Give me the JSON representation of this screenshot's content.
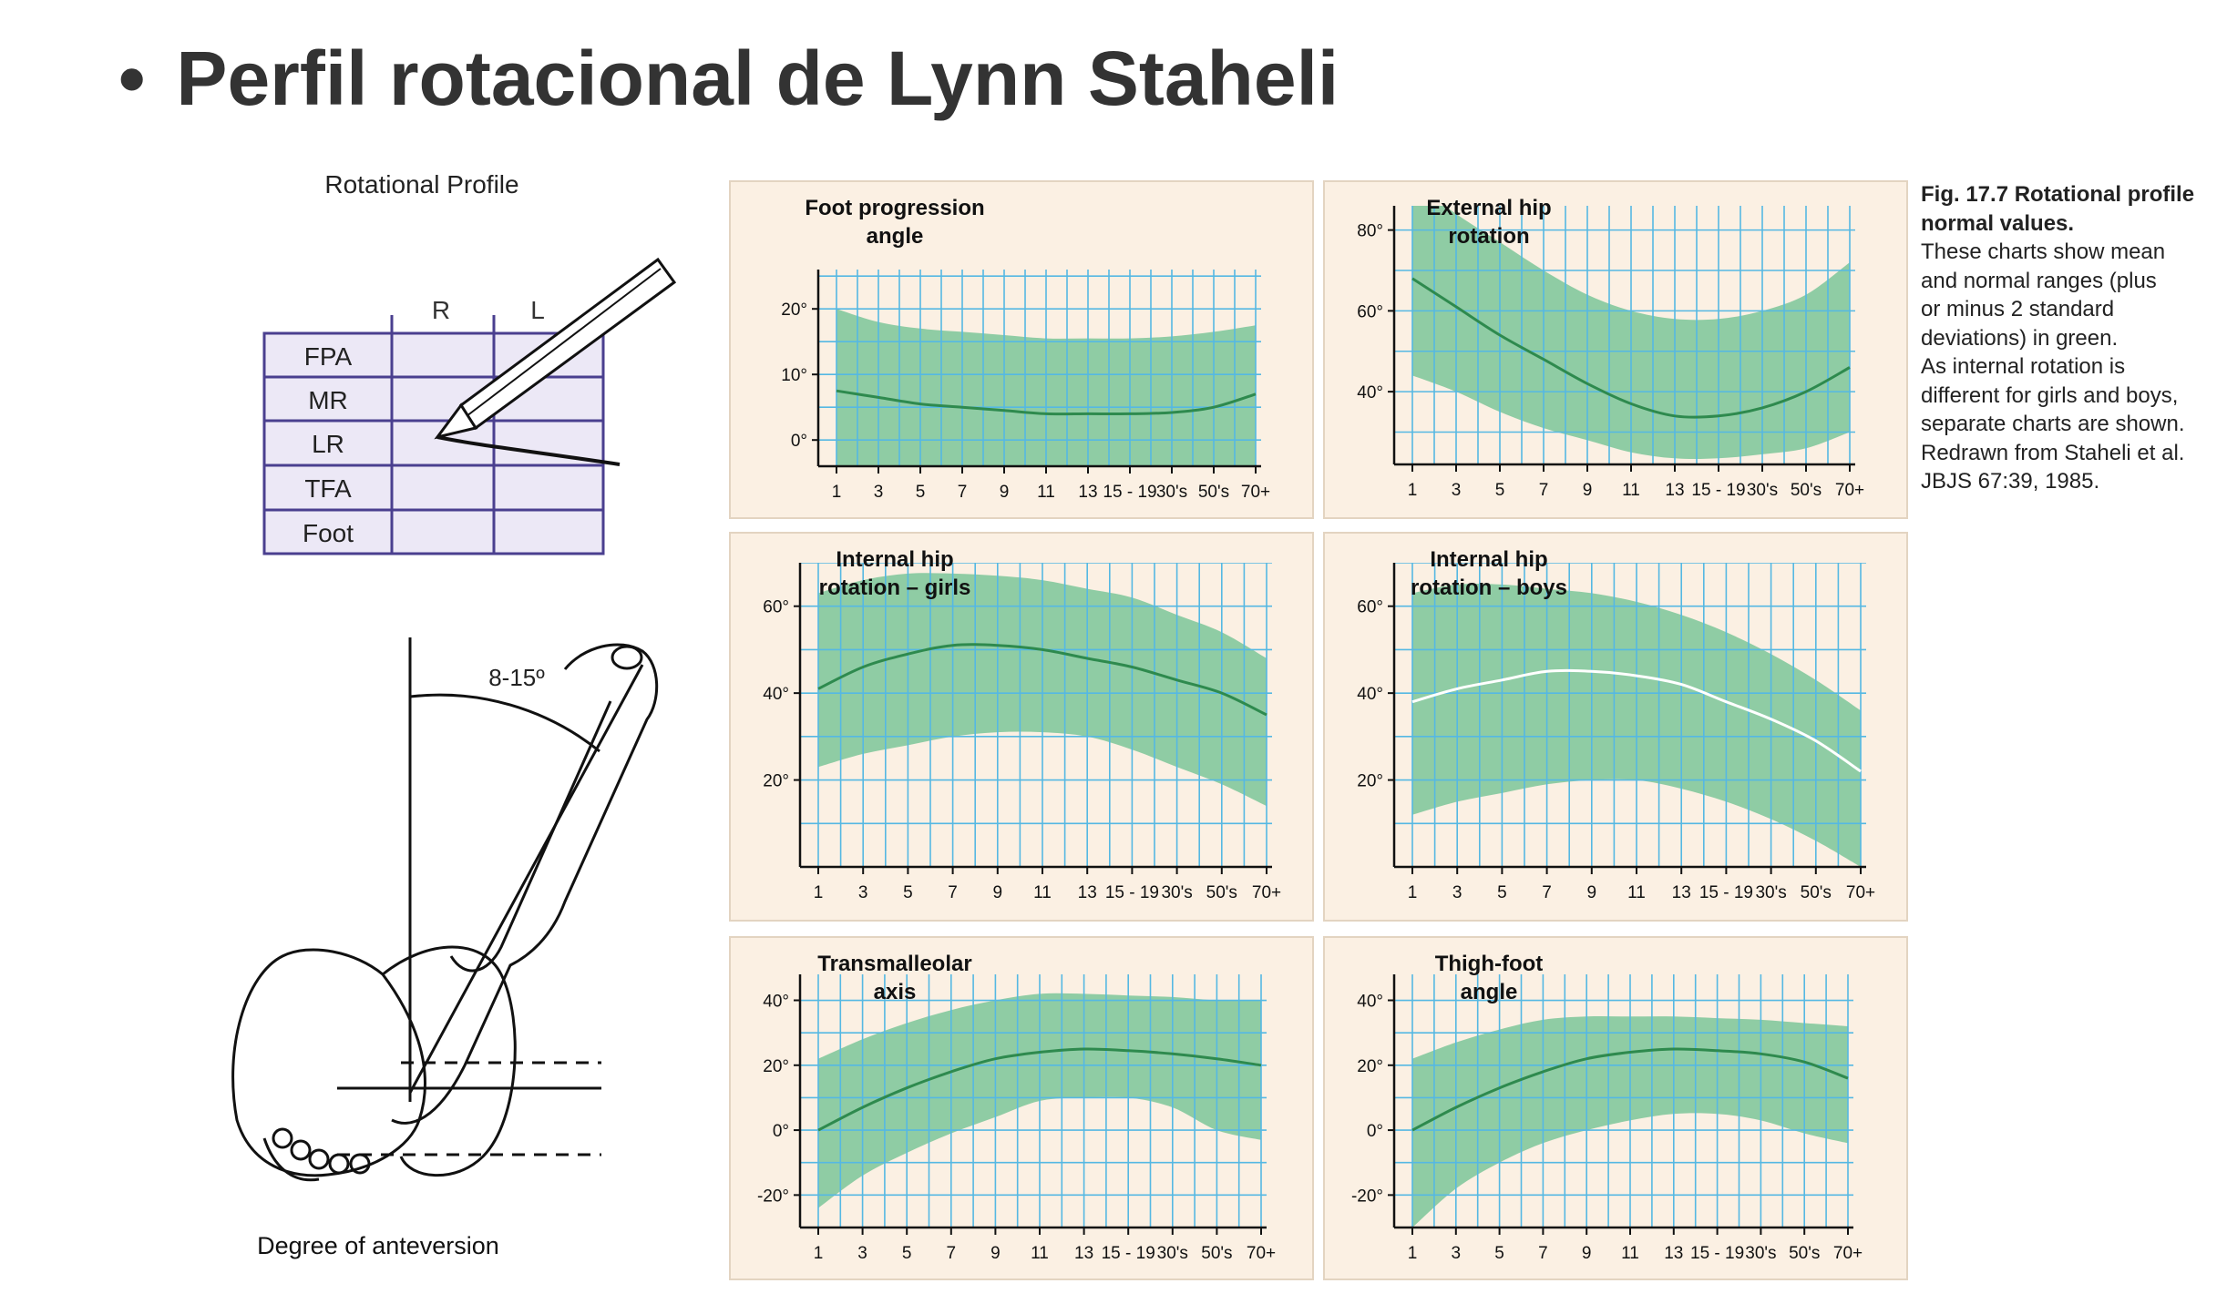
{
  "slide": {
    "bullet": "•",
    "title": "Perfil rotacional de Lynn Staheli"
  },
  "profile_table": {
    "title": "Rotational Profile",
    "col_r": "R",
    "col_l": "L",
    "rows": [
      "FPA",
      "MR",
      "LR",
      "TFA",
      "Foot"
    ]
  },
  "anteversion": {
    "angle_label": "8-15º",
    "caption": "Degree of anteversion"
  },
  "caption": {
    "bold": "Fig. 17.7 Rotational profile normal values.",
    "lines": [
      "These charts show mean",
      "and normal ranges (plus",
      "or minus 2 standard",
      "deviations) in green.",
      "As internal rotation is",
      "different for girls and boys,",
      "separate charts are shown.",
      "Redrawn from Staheli et al.",
      "JBJS 67:39, 1985."
    ]
  },
  "colors": {
    "panel_bg": "#fbf0e3",
    "band": "#8fcca4",
    "mean_line": "#2e8a4e",
    "grid": "#55b8e3",
    "axis": "#111111",
    "mean_line_boys": "#ffffff"
  },
  "chart_data": [
    {
      "id": "foot-progression-angle",
      "type": "area",
      "title": [
        "Foot progression",
        "angle"
      ],
      "x_ticks": [
        "1",
        "3",
        "5",
        "7",
        "9",
        "11",
        "13",
        "15 - 19",
        "30's",
        "50's",
        "70+"
      ],
      "y_ticks": [
        {
          "v": 0,
          "label": "0°"
        },
        {
          "v": 10,
          "label": "10°"
        },
        {
          "v": 20,
          "label": "20°"
        }
      ],
      "ylim": [
        -4,
        26
      ],
      "mean": [
        7.5,
        6.5,
        5.5,
        5,
        4.5,
        4,
        4,
        4,
        4.2,
        5,
        7
      ],
      "upper": [
        20,
        18,
        17,
        16.5,
        16,
        15.5,
        15.5,
        15.5,
        15.8,
        16.5,
        17.5
      ],
      "lower": [
        -4,
        -4,
        -4,
        -4,
        -4,
        -4,
        -4,
        -4,
        -4,
        -4,
        -4
      ],
      "mean_color": "#2e8a4e"
    },
    {
      "id": "external-hip-rotation",
      "type": "area",
      "title": [
        "External hip",
        "rotation"
      ],
      "x_ticks": [
        "1",
        "3",
        "5",
        "7",
        "9",
        "11",
        "13",
        "15 - 19",
        "30's",
        "50's",
        "70+"
      ],
      "y_ticks": [
        {
          "v": 40,
          "label": "40°"
        },
        {
          "v": 60,
          "label": "60°"
        },
        {
          "v": 80,
          "label": "80°"
        }
      ],
      "ylim": [
        22,
        86
      ],
      "mean": [
        68,
        61,
        54,
        48,
        42,
        37,
        34,
        34,
        36,
        40,
        46
      ],
      "upper": [
        92,
        84,
        77,
        70,
        64,
        60,
        58,
        58,
        60,
        64,
        72
      ],
      "lower": [
        44,
        40,
        35,
        31,
        28,
        25,
        23.5,
        23.5,
        24.5,
        26,
        30
      ],
      "mean_color": "#2e8a4e"
    },
    {
      "id": "internal-hip-rotation-girls",
      "type": "area",
      "title": [
        "Internal hip",
        "rotation – girls"
      ],
      "x_ticks": [
        "1",
        "3",
        "5",
        "7",
        "9",
        "11",
        "13",
        "15 - 19",
        "30's",
        "50's",
        "70+"
      ],
      "y_ticks": [
        {
          "v": 20,
          "label": "20°"
        },
        {
          "v": 40,
          "label": "40°"
        },
        {
          "v": 60,
          "label": "60°"
        }
      ],
      "ylim": [
        0,
        70
      ],
      "mean": [
        41,
        46,
        49,
        51,
        51,
        50,
        48,
        46,
        43,
        40,
        35
      ],
      "upper": [
        63,
        66,
        67.5,
        67.5,
        67,
        66,
        64,
        62,
        58,
        54,
        48
      ],
      "lower": [
        23,
        26,
        28,
        30,
        31,
        31,
        30,
        27,
        23,
        19,
        14
      ],
      "mean_color": "#2e8a4e"
    },
    {
      "id": "internal-hip-rotation-boys",
      "type": "area",
      "title": [
        "Internal hip",
        "rotation – boys"
      ],
      "x_ticks": [
        "1",
        "3",
        "5",
        "7",
        "9",
        "11",
        "13",
        "15 - 19",
        "30's",
        "50's",
        "70+"
      ],
      "y_ticks": [
        {
          "v": 20,
          "label": "20°"
        },
        {
          "v": 40,
          "label": "40°"
        },
        {
          "v": 60,
          "label": "60°"
        }
      ],
      "ylim": [
        0,
        70
      ],
      "mean": [
        38,
        41,
        43,
        45,
        45,
        44,
        42,
        38,
        34,
        29,
        22
      ],
      "upper": [
        63,
        65,
        65,
        64,
        63,
        61,
        58,
        54,
        49,
        43,
        36
      ],
      "lower": [
        12,
        15,
        17,
        19,
        20,
        20,
        18,
        15,
        11,
        6,
        0
      ],
      "mean_color": "#ffffff"
    },
    {
      "id": "transmalleolar-axis",
      "type": "area",
      "title": [
        "Transmalleolar",
        "axis"
      ],
      "x_ticks": [
        "1",
        "3",
        "5",
        "7",
        "9",
        "11",
        "13",
        "15 - 19",
        "30's",
        "50's",
        "70+"
      ],
      "y_ticks": [
        {
          "v": -20,
          "label": "-20°"
        },
        {
          "v": 0,
          "label": "0°"
        },
        {
          "v": 20,
          "label": "20°"
        },
        {
          "v": 40,
          "label": "40°"
        }
      ],
      "ylim": [
        -30,
        48
      ],
      "mean": [
        0,
        7,
        13,
        18,
        22,
        24,
        25,
        24.5,
        23.5,
        22,
        20
      ],
      "upper": [
        22,
        28,
        33,
        37,
        40,
        42,
        42,
        41.5,
        41,
        40,
        40
      ],
      "lower": [
        -24,
        -14,
        -7,
        -1,
        4,
        9,
        10,
        10,
        7,
        0,
        -3
      ],
      "mean_color": "#2e8a4e"
    },
    {
      "id": "thigh-foot-angle",
      "type": "area",
      "title": [
        "Thigh-foot",
        "angle"
      ],
      "x_ticks": [
        "1",
        "3",
        "5",
        "7",
        "9",
        "11",
        "13",
        "15 - 19",
        "30's",
        "50's",
        "70+"
      ],
      "y_ticks": [
        {
          "v": -20,
          "label": "-20°"
        },
        {
          "v": 0,
          "label": "0°"
        },
        {
          "v": 20,
          "label": "20°"
        },
        {
          "v": 40,
          "label": "40°"
        }
      ],
      "ylim": [
        -30,
        48
      ],
      "mean": [
        0,
        7,
        13,
        18,
        22,
        24,
        25,
        24.5,
        23.5,
        21,
        16
      ],
      "upper": [
        22,
        27,
        31,
        34,
        35,
        35,
        35,
        34.5,
        34,
        33,
        32
      ],
      "lower": [
        -30,
        -18,
        -10,
        -4,
        0,
        3,
        5,
        5,
        3,
        -1,
        -4
      ],
      "mean_color": "#2e8a4e"
    }
  ]
}
